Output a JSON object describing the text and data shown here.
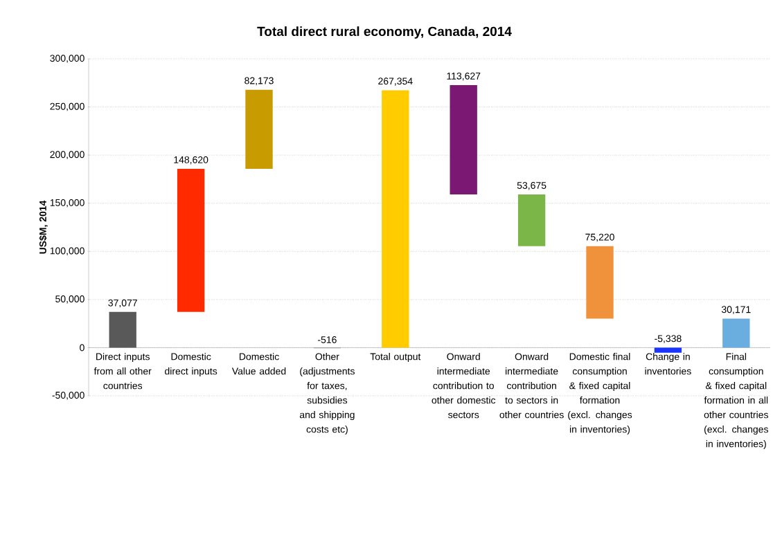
{
  "chart_data": {
    "type": "bar",
    "title": "Total direct rural economy, Canada, 2014",
    "ylabel": "US$M, 2014",
    "categories": [
      "Direct inputs from all other countries",
      "Domestic direct inputs",
      "Domestic Value added",
      "Other (adjustments for taxes, subsidies and shipping costs etc)",
      "Total output",
      "Onward intermediate contribution to other domestic sectors",
      "Onward intermediate contribution to sectors in other countries",
      "Domestic final consumption & fixed capital formation (excl. changes in inventories)",
      "Change in inventories",
      "Final consumption & fixed capital formation in all other countries (excl. changes in inventories)"
    ],
    "values": [
      37077,
      148620,
      82173,
      -516,
      267354,
      113627,
      53675,
      75220,
      -5338,
      30171
    ],
    "base": [
      0,
      37077,
      185697,
      0,
      0,
      159066,
      105391,
      30171,
      0,
      0
    ],
    "value_labels": [
      "37,077",
      "148,620",
      "82,173",
      "-516",
      "267,354",
      "113,627",
      "53,675",
      "75,220",
      "-5,338",
      "30,171"
    ],
    "colors": [
      "#595959",
      "#ff2a00",
      "#c89b00",
      "#808080",
      "#ffcc00",
      "#7b1873",
      "#7ab648",
      "#f0923c",
      "#1a35ff",
      "#6aaee0"
    ],
    "ylim": [
      -50000,
      300000
    ],
    "yticks": [
      {
        "value": -50000,
        "label": "-50,000"
      },
      0,
      {
        "value": 50000,
        "label": "50,000"
      },
      {
        "value": 100000,
        "label": "100,000"
      },
      {
        "value": 150000,
        "label": "150,000"
      },
      {
        "value": 200000,
        "label": "200,000"
      },
      {
        "value": 250000,
        "label": "250,000"
      },
      {
        "value": 300000,
        "label": "300,000"
      }
    ],
    "grid": "y"
  }
}
